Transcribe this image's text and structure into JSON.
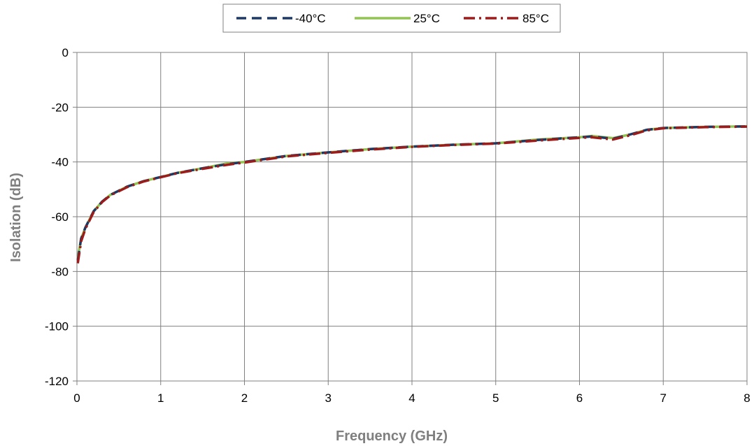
{
  "chart_data": {
    "type": "line",
    "title": "",
    "xlabel": "Frequency (GHz)",
    "ylabel": "Isolation (dB)",
    "xlim": [
      0,
      8
    ],
    "ylim": [
      -120,
      0
    ],
    "xticks": [
      0,
      1,
      2,
      3,
      4,
      5,
      6,
      7,
      8
    ],
    "yticks": [
      0,
      -20,
      -40,
      -60,
      -80,
      -100,
      -120
    ],
    "grid": true,
    "legend": "top-center",
    "series": [
      {
        "name": "-40°C",
        "color": "#1f3864",
        "style": "dash",
        "x": [
          0.01,
          0.05,
          0.1,
          0.2,
          0.3,
          0.4,
          0.5,
          0.6,
          0.8,
          1.0,
          1.2,
          1.5,
          1.8,
          2.0,
          2.5,
          3.0,
          3.5,
          4.0,
          4.5,
          5.0,
          5.5,
          6.0,
          6.15,
          6.4,
          6.6,
          6.8,
          7.0,
          7.5,
          8.0
        ],
        "y": [
          -76,
          -68,
          -64,
          -58,
          -54.5,
          -52,
          -50.5,
          -49,
          -47,
          -45.5,
          -44,
          -42.3,
          -40.8,
          -40,
          -37.8,
          -36.5,
          -35.3,
          -34.4,
          -33.7,
          -33.2,
          -32,
          -31,
          -30.7,
          -31.5,
          -30,
          -28.3,
          -27.6,
          -27.2,
          -27
        ]
      },
      {
        "name": "25°C",
        "color": "#92c353",
        "style": "solid",
        "x": [
          0.01,
          0.05,
          0.1,
          0.2,
          0.3,
          0.4,
          0.5,
          0.6,
          0.8,
          1.0,
          1.2,
          1.5,
          1.8,
          2.0,
          2.5,
          3.0,
          3.5,
          4.0,
          4.5,
          5.0,
          5.5,
          6.0,
          6.15,
          6.4,
          6.6,
          6.8,
          7.0,
          7.5,
          8.0
        ],
        "y": [
          -75,
          -68,
          -64,
          -58,
          -54.5,
          -52,
          -50.5,
          -49,
          -47,
          -45.5,
          -44,
          -42.3,
          -40.5,
          -40,
          -37.8,
          -36.5,
          -35.3,
          -34.4,
          -33.7,
          -33.2,
          -31.8,
          -31,
          -30.5,
          -31.3,
          -30,
          -28.3,
          -27.6,
          -27.2,
          -27
        ]
      },
      {
        "name": "85°C",
        "color": "#9c1c1c",
        "style": "dashdot",
        "x": [
          0.01,
          0.05,
          0.1,
          0.2,
          0.3,
          0.4,
          0.5,
          0.6,
          0.8,
          1.0,
          1.2,
          1.5,
          1.8,
          2.0,
          2.5,
          3.0,
          3.5,
          4.0,
          4.5,
          5.0,
          5.5,
          6.0,
          6.15,
          6.4,
          6.6,
          6.8,
          7.0,
          7.5,
          8.0
        ],
        "y": [
          -77,
          -69,
          -64.5,
          -58.3,
          -54.7,
          -52.2,
          -50.7,
          -49.2,
          -47.1,
          -45.6,
          -44.1,
          -42.5,
          -41,
          -40.2,
          -38,
          -36.7,
          -35.5,
          -34.5,
          -33.8,
          -33.3,
          -32.2,
          -31.2,
          -31,
          -31.8,
          -30.3,
          -28.5,
          -27.7,
          -27.3,
          -27.1
        ]
      }
    ]
  }
}
